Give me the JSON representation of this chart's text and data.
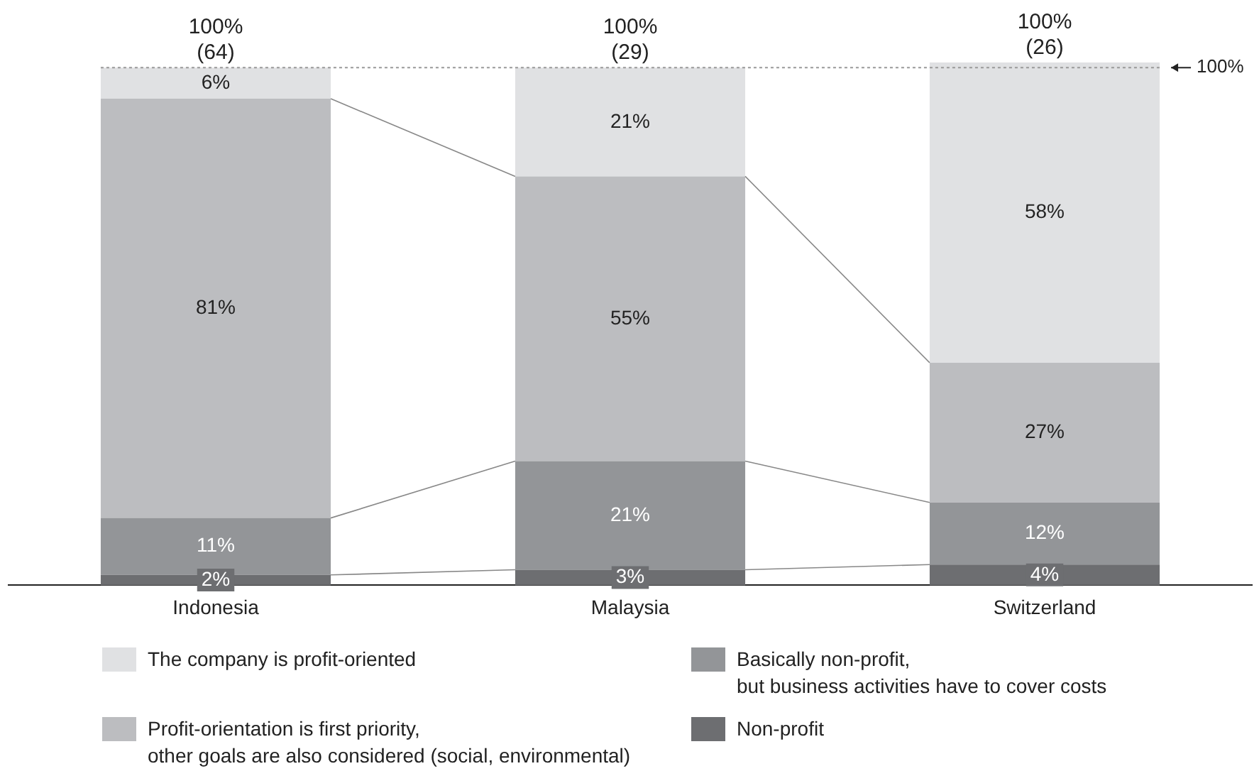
{
  "chart_data": {
    "type": "bar",
    "stacked": true,
    "categories": [
      "Indonesia",
      "Malaysia",
      "Switzerland"
    ],
    "series": [
      {
        "name": "Non-profit",
        "color": "#6d6e71",
        "values": [
          2,
          3,
          4
        ],
        "value_labels": [
          "2%",
          "3%",
          "4%"
        ]
      },
      {
        "name": "Basically non-profit,\nbut business activities have to cover costs",
        "color": "#939598",
        "values": [
          11,
          21,
          12
        ],
        "value_labels": [
          "11%",
          "21%",
          "12%"
        ]
      },
      {
        "name": "Profit-orientation is first priority,\nother goals are also considered (social, environmental)",
        "color": "#bcbdc0",
        "values": [
          81,
          55,
          27
        ],
        "value_labels": [
          "81%",
          "55%",
          "27%"
        ]
      },
      {
        "name": "The company is profit-oriented",
        "color": "#e0e1e3",
        "values": [
          6,
          21,
          58
        ],
        "value_labels": [
          "6%",
          "21%",
          "58%"
        ]
      }
    ],
    "totals": [
      "100%\n(64)",
      "100%\n(29)",
      "100%\n(26)"
    ],
    "ref_lines": [
      {
        "axis": "y",
        "value": 100,
        "label": "100%",
        "line_style": "dotted",
        "color": "#999999"
      }
    ],
    "legend": "bottom",
    "grid": false
  }
}
